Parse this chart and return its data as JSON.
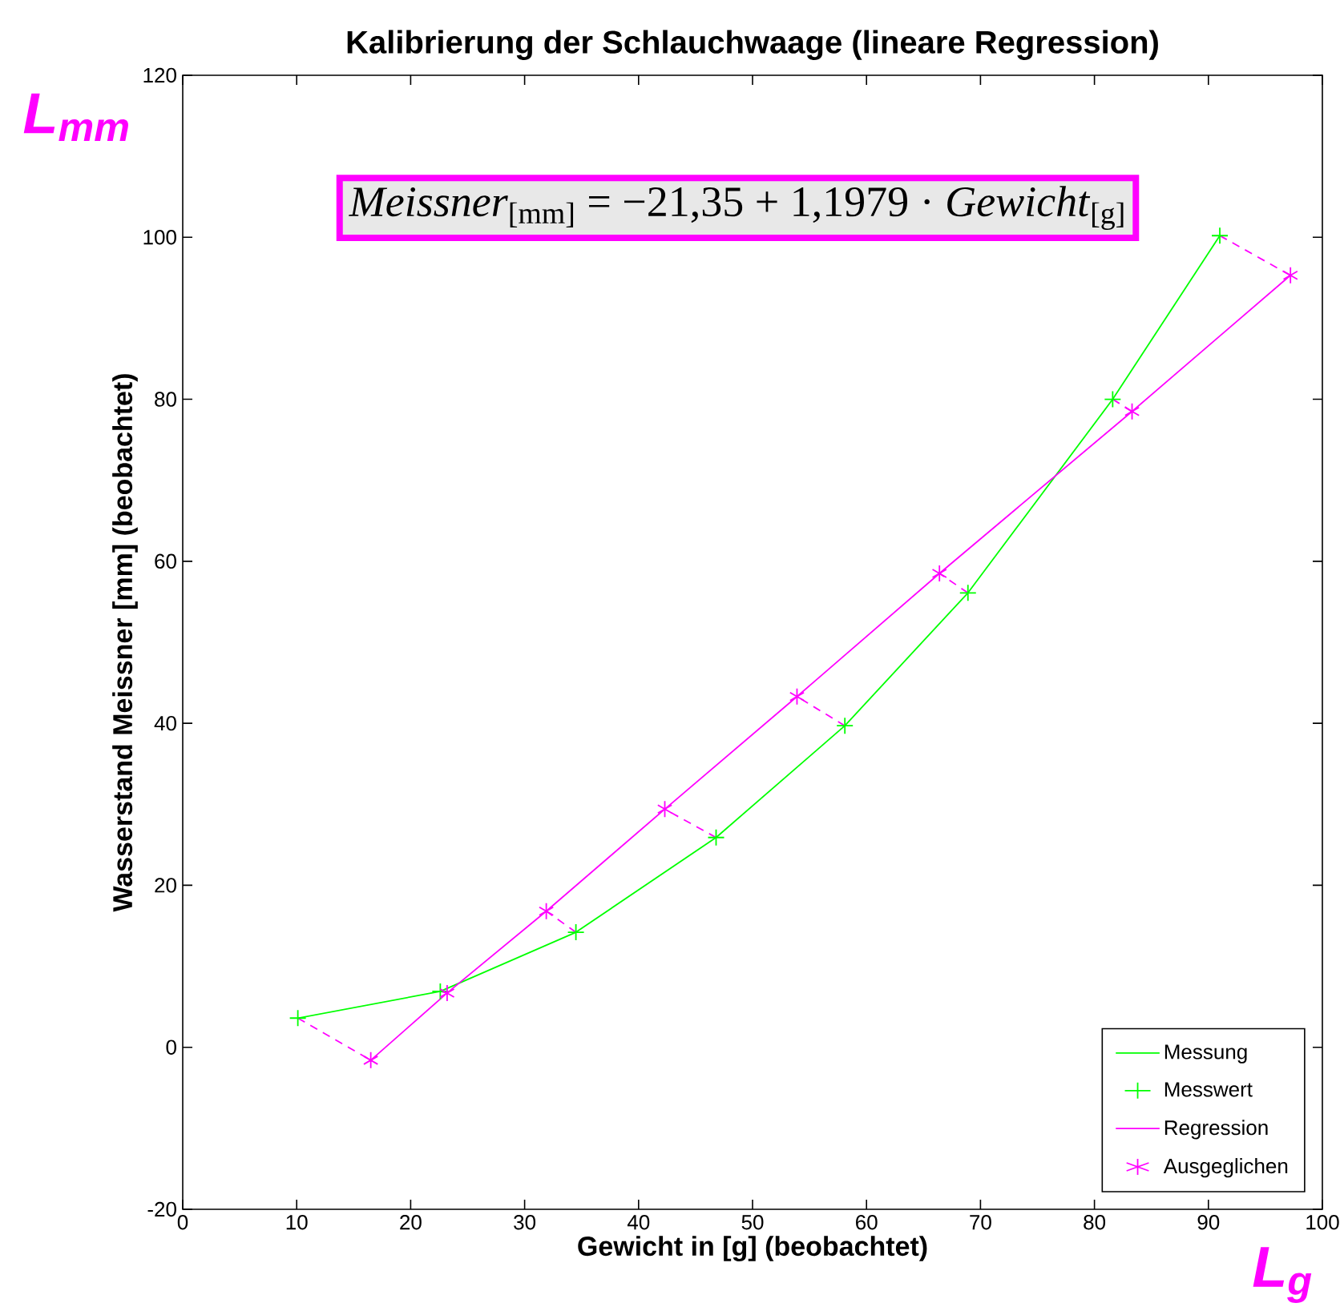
{
  "chart_data": {
    "type": "line",
    "title": "Kalibrierung der Schlauchwaage (lineare Regression)",
    "xlabel": "Gewicht in [g] (beobachtet)",
    "ylabel": "Wasserstand Meissner [mm] (beobachtet)",
    "xlim": [
      0,
      100
    ],
    "ylim": [
      -20,
      120
    ],
    "xticks": [
      0,
      10,
      20,
      30,
      40,
      50,
      60,
      70,
      80,
      90,
      100
    ],
    "yticks": [
      -20,
      0,
      20,
      40,
      60,
      80,
      100,
      120
    ],
    "grid": false,
    "legend": "bottom right",
    "annotations": [
      "L$_{mm}$",
      "*Meissner*$_{[mm]}$ = −21,35 + 1,1979 · *Gewicht*$_{[g]}$",
      "L$_{g}$"
    ],
    "series": [
      {
        "name": "Messung",
        "line_style": "solid",
        "marker": "none",
        "color": "#00ff00",
        "x": [
          10.1,
          22.6,
          34.5,
          46.8,
          58.1,
          68.9,
          81.6,
          91.0
        ],
        "values": [
          3.6,
          6.9,
          14.2,
          25.9,
          39.7,
          56.1,
          80.0,
          100.2
        ]
      },
      {
        "name": "Messwert",
        "type": "scatter",
        "color": "#00ff00",
        "x": [
          10.1,
          22.6,
          34.5,
          46.8,
          58.1,
          68.9,
          81.6,
          91.0
        ],
        "values": [
          3.6,
          6.9,
          14.2,
          25.9,
          39.7,
          56.1,
          80.0,
          100.2
        ]
      },
      {
        "name": "Regression",
        "line_style": "solid",
        "marker": "none",
        "color": "#ff00ff",
        "x": [
          16.5,
          23.2,
          31.9,
          42.3,
          53.9,
          66.4,
          83.3,
          97.2
        ],
        "values": [
          -1.6,
          6.7,
          16.8,
          29.4,
          43.3,
          58.5,
          78.5,
          95.3
        ]
      },
      {
        "name": "Ausgeglichen",
        "type": "scatter",
        "marker": "cross",
        "color": "#ff00ff",
        "x": [
          16.5,
          23.2,
          31.9,
          42.3,
          53.9,
          66.4,
          83.3,
          97.2
        ],
        "values": [
          -1.6,
          6.7,
          16.8,
          29.4,
          43.3,
          58.5,
          78.5,
          95.3
        ]
      },
      {
        "line_style": "dashed",
        "marker": "none",
        "color": "#ff00ff",
        "x": [
          10.1,
          16.5,
          null,
          22.6,
          23.2,
          null,
          34.5,
          31.9,
          null,
          46.8,
          42.3,
          null,
          58.1,
          53.9,
          null,
          68.9,
          66.4,
          null,
          81.6,
          83.3,
          null,
          91.0,
          97.2
        ],
        "values": [
          3.6,
          -1.6,
          null,
          6.9,
          6.7,
          null,
          14.2,
          16.8,
          null,
          25.9,
          29.4,
          null,
          39.7,
          43.3,
          null,
          56.1,
          58.5,
          null,
          80.0,
          78.5,
          null,
          100.2,
          95.3
        ]
      }
    ]
  }
}
